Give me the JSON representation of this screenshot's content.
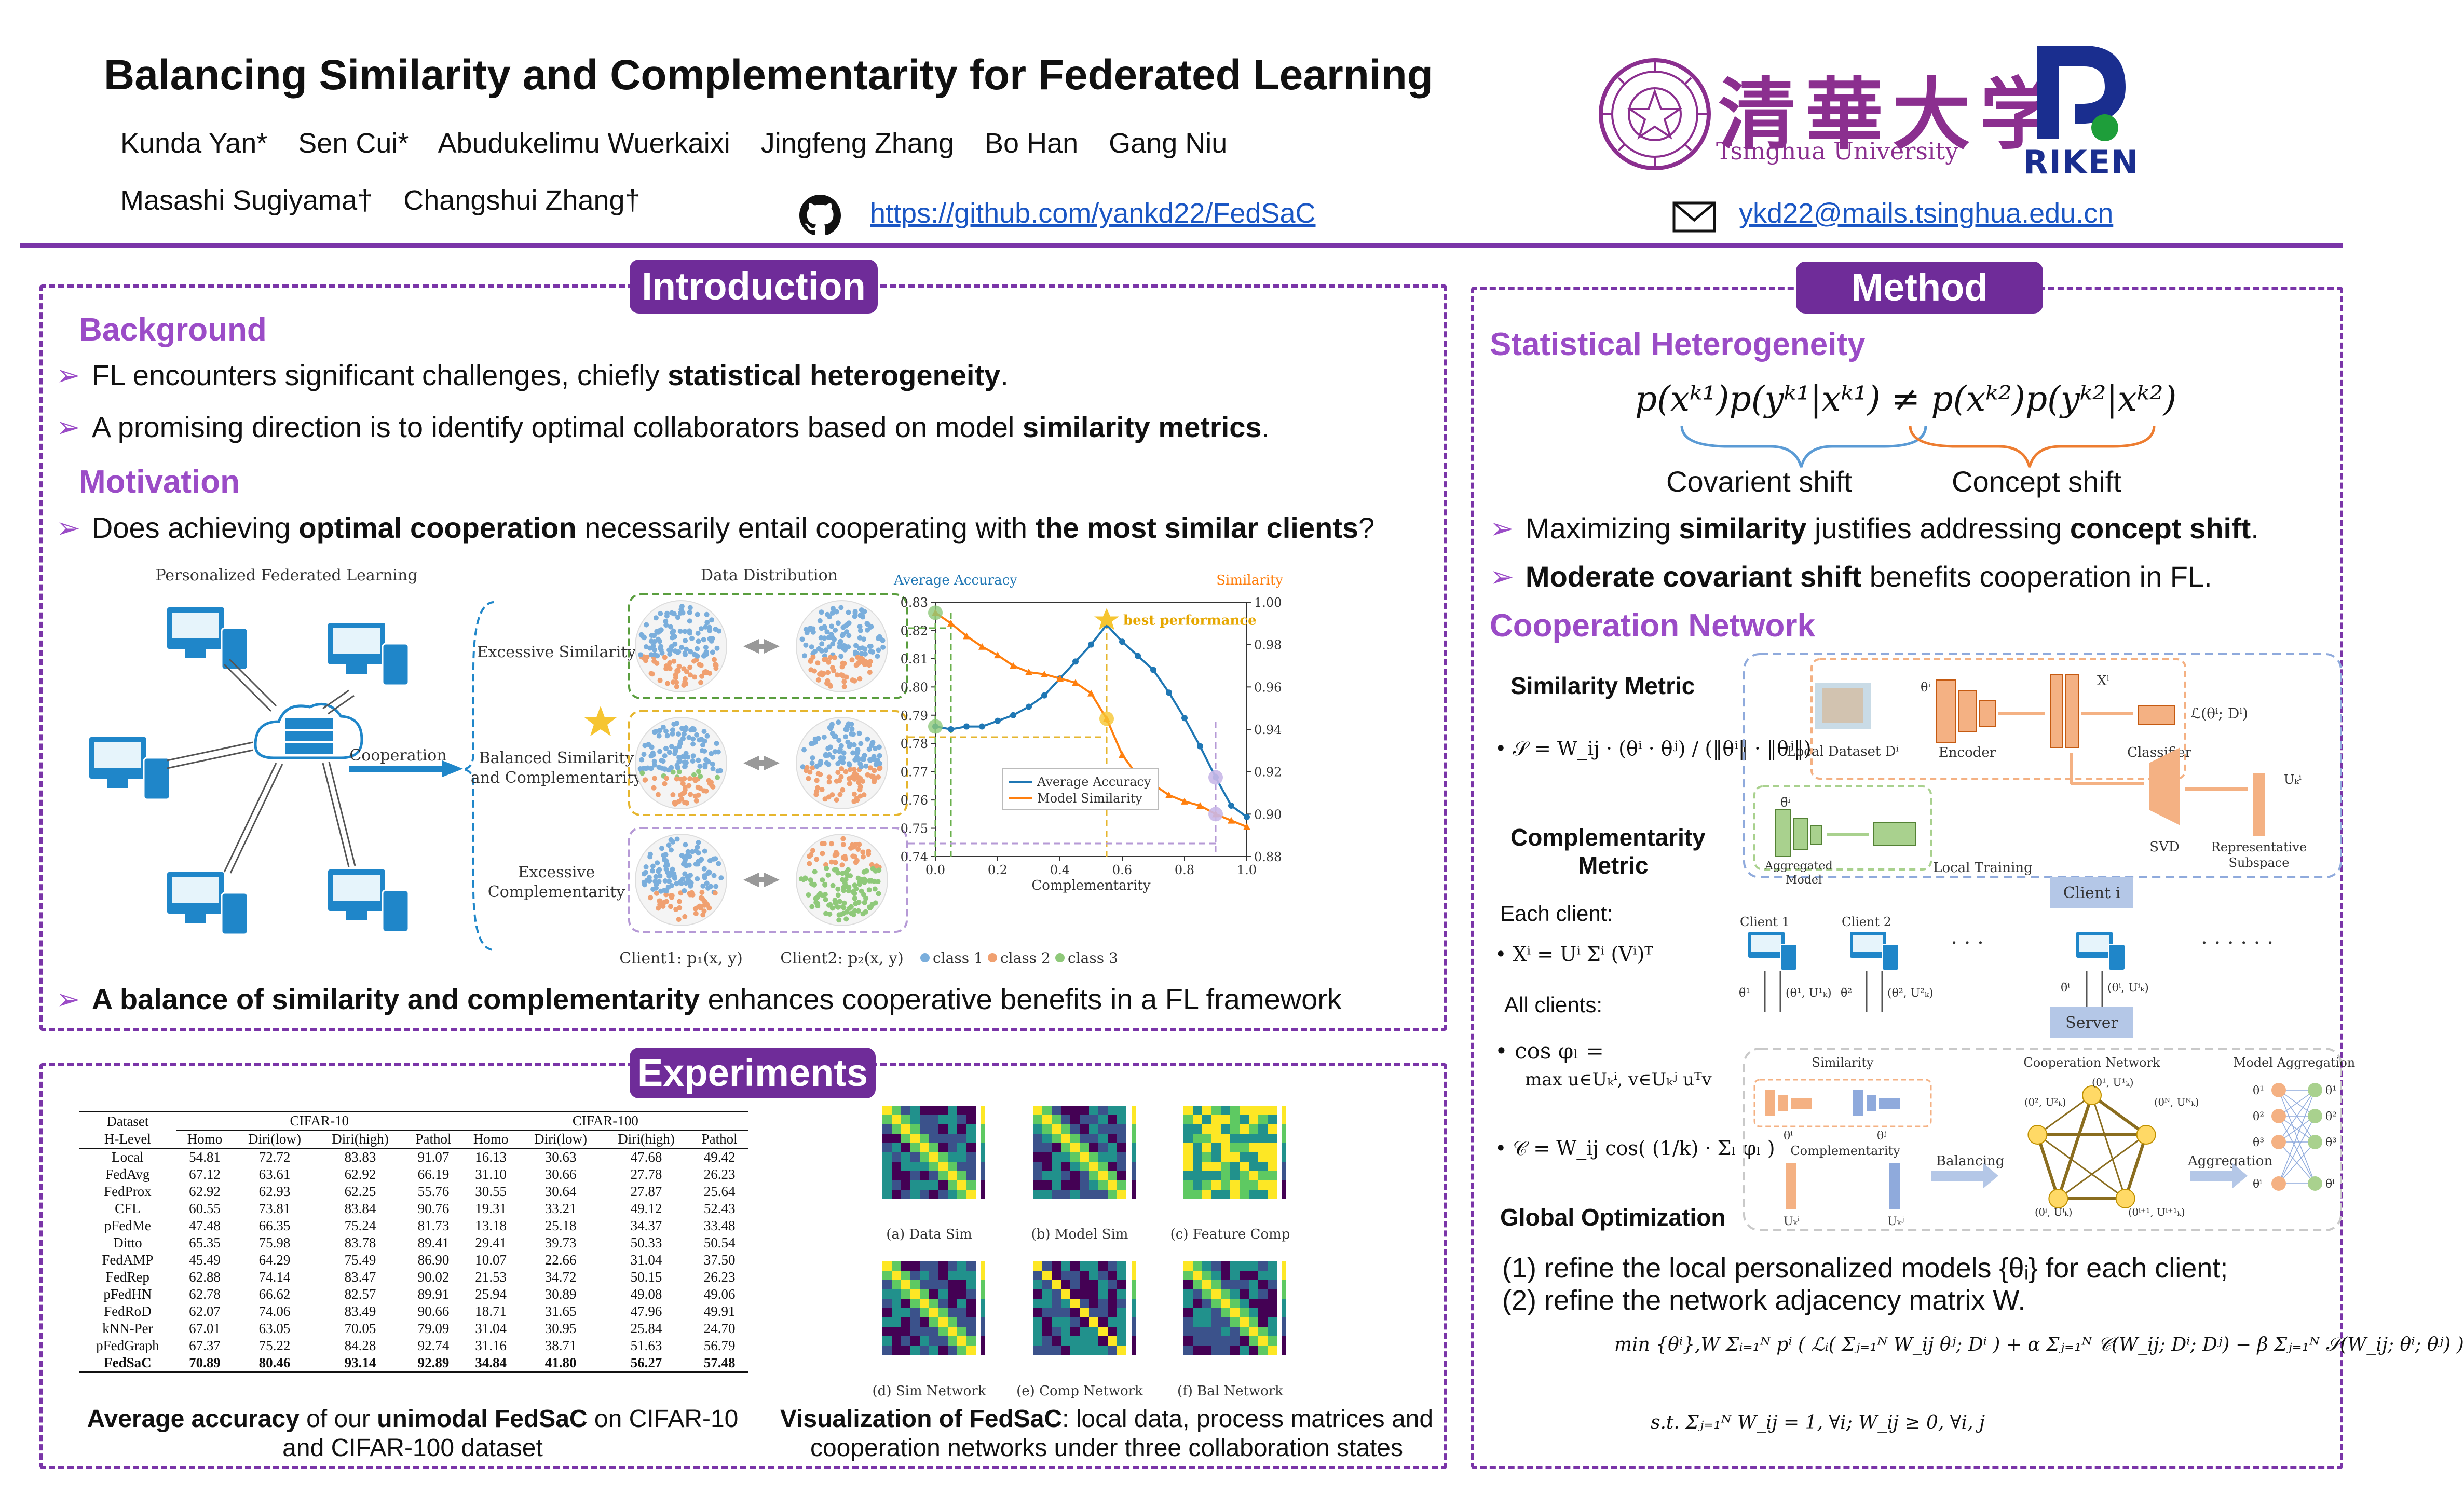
{
  "header": {
    "title": "Balancing Similarity and Complementarity for Federated Learning",
    "authors_line1": [
      "Kunda Yan*",
      "Sen Cui*",
      "Abudukelimu Wuerkaixi",
      "Jingfeng Zhang",
      "Bo Han",
      "Gang Niu"
    ],
    "authors_line2": [
      "Masashi Sugiyama†",
      "Changshui Zhang†"
    ],
    "github_url": "https://github.com/yankd22/FedSaC",
    "email": "ykd22@mails.tsinghua.edu.cn",
    "tsinghua_cn": "清華大学",
    "tsinghua_en": "Tsinghua University",
    "riken_text": "RIKEN",
    "accent_color": "#7a35a8",
    "link_color": "#1a56c4"
  },
  "intro": {
    "title": "Introduction",
    "background_head": "Background",
    "bullet1_pre": "FL encounters significant challenges, chiefly ",
    "bullet1_bold": "statistical heterogeneity",
    "bullet1_post": ".",
    "bullet2_pre": "A promising direction is to identify optimal collaborators based on model ",
    "bullet2_bold": "similarity metrics",
    "bullet2_post": ".",
    "motivation_head": "Motivation",
    "bullet3_pre": "Does achieving ",
    "bullet3_bold1": "optimal cooperation",
    "bullet3_mid": " necessarily entail cooperating with ",
    "bullet3_bold2": "the most similar clients",
    "bullet3_post": "?",
    "bullet4_bold": "A balance of similarity and complementarity",
    "bullet4_post": " enhances cooperative benefits in a FL framework",
    "figure": {
      "pfl_title": "Personalized Federated Learning",
      "cooperation": "Cooperation",
      "data_dist_title": "Data Distribution",
      "row1": "Excessive Similarity",
      "row2a": "Balanced Similarity",
      "row2b": "and Complementarity",
      "row3a": "Excessive",
      "row3b": "Complementarity",
      "client1": "Client1: p₁(x, y)",
      "client2": "Client2: p₂(x, y)",
      "class1": "class 1",
      "class2": "class 2",
      "class3": "class 3",
      "best_perf": "best performance"
    }
  },
  "chart_data": {
    "type": "line",
    "title": "",
    "xlabel": "Complementarity",
    "ylabel": "Average Accuracy",
    "y2label": "Similarity",
    "xlim": [
      0.0,
      1.0
    ],
    "ylim": [
      0.74,
      0.83
    ],
    "y2lim": [
      0.88,
      1.0
    ],
    "x_ticks": [
      0.0,
      0.2,
      0.4,
      0.6,
      0.8,
      1.0
    ],
    "y_ticks": [
      0.74,
      0.75,
      0.76,
      0.77,
      0.78,
      0.79,
      0.8,
      0.81,
      0.82,
      0.83
    ],
    "y2_ticks": [
      0.88,
      0.9,
      0.92,
      0.94,
      0.96,
      0.98,
      1.0
    ],
    "legend_position": "lower-left",
    "series": [
      {
        "name": "Average Accuracy",
        "axis": "left",
        "color": "#1f77b4",
        "x": [
          0.0,
          0.05,
          0.1,
          0.15,
          0.2,
          0.25,
          0.3,
          0.35,
          0.4,
          0.45,
          0.5,
          0.55,
          0.6,
          0.65,
          0.7,
          0.75,
          0.8,
          0.85,
          0.9,
          0.95,
          1.0
        ],
        "y": [
          0.786,
          0.785,
          0.786,
          0.786,
          0.788,
          0.79,
          0.793,
          0.797,
          0.803,
          0.809,
          0.815,
          0.822,
          0.816,
          0.811,
          0.806,
          0.798,
          0.789,
          0.779,
          0.768,
          0.758,
          0.754
        ]
      },
      {
        "name": "Model Similarity",
        "axis": "right",
        "color": "#ff7f0e",
        "x": [
          0.0,
          0.05,
          0.1,
          0.15,
          0.2,
          0.25,
          0.3,
          0.35,
          0.4,
          0.45,
          0.5,
          0.55,
          0.6,
          0.65,
          0.7,
          0.75,
          0.8,
          0.85,
          0.9,
          0.95,
          1.0
        ],
        "y": [
          0.995,
          0.99,
          0.984,
          0.979,
          0.975,
          0.97,
          0.967,
          0.966,
          0.964,
          0.962,
          0.957,
          0.945,
          0.928,
          0.918,
          0.914,
          0.909,
          0.906,
          0.904,
          0.9,
          0.897,
          0.894
        ]
      }
    ]
  },
  "experiments": {
    "title": "Experiments",
    "table": {
      "dataset_label": "Dataset",
      "hlevel_label": "H-Level",
      "groups": [
        "CIFAR-10",
        "CIFAR-100"
      ],
      "subcols": [
        "Homo",
        "Diri(low)",
        "Diri(high)",
        "Pathol",
        "Homo",
        "Diri(low)",
        "Diri(high)",
        "Pathol"
      ],
      "rows": [
        [
          "Local",
          "54.81",
          "72.72",
          "83.83",
          "91.07",
          "16.13",
          "30.63",
          "47.68",
          "49.42"
        ],
        [
          "FedAvg",
          "67.12",
          "63.61",
          "62.92",
          "66.19",
          "31.10",
          "30.66",
          "27.78",
          "26.23"
        ],
        [
          "FedProx",
          "62.92",
          "62.93",
          "62.25",
          "55.76",
          "30.55",
          "30.64",
          "27.87",
          "25.64"
        ],
        [
          "CFL",
          "60.55",
          "73.81",
          "83.84",
          "90.76",
          "19.31",
          "33.21",
          "49.12",
          "52.43"
        ],
        [
          "pFedMe",
          "47.48",
          "66.35",
          "75.24",
          "81.73",
          "13.18",
          "25.18",
          "34.37",
          "33.48"
        ],
        [
          "Ditto",
          "65.35",
          "75.98",
          "83.78",
          "89.41",
          "29.41",
          "39.73",
          "50.33",
          "50.54"
        ],
        [
          "FedAMP",
          "45.49",
          "64.29",
          "75.49",
          "86.90",
          "10.07",
          "22.66",
          "31.04",
          "37.50"
        ],
        [
          "FedRep",
          "62.88",
          "74.14",
          "83.47",
          "90.02",
          "21.53",
          "34.72",
          "50.15",
          "26.23"
        ],
        [
          "pFedHN",
          "62.78",
          "66.62",
          "82.57",
          "89.91",
          "25.94",
          "30.89",
          "49.08",
          "49.06"
        ],
        [
          "FedRoD",
          "62.07",
          "74.06",
          "83.49",
          "90.66",
          "18.71",
          "31.65",
          "47.96",
          "49.91"
        ],
        [
          "kNN-Per",
          "67.01",
          "63.05",
          "70.05",
          "79.09",
          "31.04",
          "30.95",
          "25.84",
          "24.70"
        ],
        [
          "pFedGraph",
          "67.37",
          "75.22",
          "84.28",
          "92.74",
          "31.16",
          "38.71",
          "51.63",
          "56.79"
        ]
      ],
      "best_row": [
        "FedSaC",
        "70.89",
        "80.46",
        "93.14",
        "92.89",
        "34.84",
        "41.80",
        "56.27",
        "57.48"
      ]
    },
    "table_caption_b1": "Average accuracy",
    "table_caption_mid": " of our ",
    "table_caption_b2": "unimodal FedSaC",
    "table_caption_post": " on CIFAR-10 and CIFAR-100 dataset",
    "heatmap_labels": [
      "(a) Data Sim",
      "(b) Model Sim",
      "(c) Feature Comp",
      "(d) Sim Network",
      "(e) Comp Network",
      "(f) Bal Network"
    ],
    "vis_caption_bold": "Visualization of FedSaC",
    "vis_caption_post": ": local data, process matrices and cooperation networks under three collaboration states"
  },
  "method": {
    "title": "Method",
    "hetero_head": "Statistical Heterogeneity",
    "hetero_eq": "p(xᵏ¹)p(yᵏ¹|xᵏ¹) ≠ p(xᵏ²)p(yᵏ²|xᵏ²)",
    "covariant_shift": "Covarient shift",
    "concept_shift": "Concept shift",
    "bullet1_pre": "Maximizing ",
    "bullet1_bold1": "similarity",
    "bullet1_mid": " justifies addressing ",
    "bullet1_bold2": "concept shift",
    "bullet1_post": ".",
    "bullet2_bold": "Moderate covariant shift",
    "bullet2_post": " benefits cooperation in FL.",
    "coop_head": "Cooperation Network",
    "sim_metric": "Similarity Metric",
    "sim_formula": "𝒮 = W_ij · (θⁱ · θʲ) / (‖θⁱ‖ · ‖θʲ‖)",
    "comp_metric_a": "Complementarity",
    "comp_metric_b": "Metric",
    "each_client": "Each client:",
    "svd_formula": "Xⁱ = Uⁱ Σⁱ (Vⁱ)ᵀ",
    "all_clients": "All clients:",
    "cos_formula_a": "cos φₗ =",
    "cos_formula_b": "max u∈Uₖⁱ, v∈Uₖʲ  uᵀv",
    "comp_formula": "𝒞 = W_ij cos( (1/k) · Σₗ φₗ )",
    "global_opt": "Global Optimization",
    "diagram": {
      "local_dataset": "Local Dataset Dⁱ",
      "encoder": "Encoder",
      "classifier": "Classifier",
      "loss": "ℒ(θⁱ; Dⁱ)",
      "xi": "Xⁱ",
      "theta_i": "θⁱ",
      "aggregated_model_a": "Aggregated",
      "aggregated_model_b": "Model",
      "theta_tilde": "θ̃ⁱ",
      "local_training": "Local Training",
      "svd": "SVD",
      "rep_subspace_a": "Representative",
      "rep_subspace_b": "Subspace",
      "uk": "Uₖⁱ",
      "client1": "Client 1",
      "client2": "Client 2",
      "clienti": "Client i",
      "server": "Server",
      "dots": "· · ·",
      "dots2": "· · · · · ·",
      "similarity": "Similarity",
      "complementarity": "Complementarity",
      "coop_network": "Cooperation Network",
      "model_aggregation": "Model Aggregation",
      "balancing": "Balancing",
      "aggregation": "Aggregation",
      "up1": "(θ¹, U¹ₖ)",
      "up2": "(θ², U²ₖ)",
      "upi": "(θⁱ, Uⁱₖ)",
      "down1": "θ̃¹",
      "down2": "θ̃²",
      "downi": "θ̃ⁱ",
      "n1": "(θ¹, U¹ₖ)",
      "n2": "(θ², U²ₖ)",
      "n3": "(θᴺ, Uᴺₖ)",
      "n4": "(θⁱ, Uⁱₖ)",
      "n5": "(θⁱ⁺¹, Uⁱ⁺¹ₖ)",
      "theta_small": "θⁱ",
      "theta_j": "θʲ",
      "uk_i": "Uₖⁱ",
      "uk_j": "Uₖʲ",
      "agg_in": [
        "θ¹",
        "θ²",
        "θ³",
        "θⁱ"
      ],
      "agg_out": [
        "θ̃¹",
        "θ̃²",
        "θ̃³",
        "θ̃ⁱ"
      ]
    },
    "go_line1": "(1) refine the local personalized models {θᵢ} for each client;",
    "go_line2": "(2) refine the network adjacency matrix W.",
    "go_eq1": "min {θⁱ},W  Σᵢ₌₁ᴺ pⁱ ( ℒᵢ( Σⱼ₌₁ᴺ W_ij θʲ; Dⁱ ) + α Σⱼ₌₁ᴺ 𝒞(W_ij; Dⁱ; Dʲ) − β Σⱼ₌₁ᴺ 𝒮(W_ij; θⁱ; θʲ) )",
    "go_eq2": "s.t.  Σⱼ₌₁ᴺ W_ij = 1, ∀i;     W_ij ≥ 0, ∀i, j"
  }
}
